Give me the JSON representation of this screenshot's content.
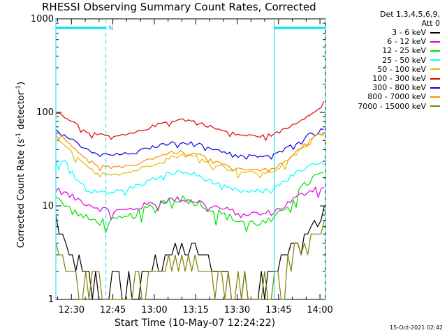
{
  "chart_data": {
    "type": "line",
    "title": "RHESSI Observing Summary Count Rates, Corrected",
    "xlabel": "Start Time (10-May-07 12:24:22)",
    "ylabel_main": "Corrected Count Rate (s",
    "ylabel_exp1": "-1",
    "ylabel_mid": " detector",
    "ylabel_exp2": "-1",
    "ylabel_end": ")",
    "yscale": "log",
    "ylim": [
      1,
      1000
    ],
    "xlim_minutes": [
      24.37,
      122
    ],
    "x_ticks": [
      {
        "label": "12:30",
        "min": 30
      },
      {
        "label": "12:45",
        "min": 45
      },
      {
        "label": "13:00",
        "min": 60
      },
      {
        "label": "13:15",
        "min": 75
      },
      {
        "label": "13:30",
        "min": 90
      },
      {
        "label": "13:45",
        "min": 105
      },
      {
        "label": "14:00",
        "min": 120
      }
    ],
    "y_ticks": [
      {
        "label": "1",
        "value": 1
      },
      {
        "label": "10",
        "value": 10
      },
      {
        "label": "100",
        "value": 100
      },
      {
        "label": "1000",
        "value": 1000
      }
    ],
    "legend_header": [
      "Det 1,3,4,5,6,9,",
      "Att 0"
    ],
    "night_intervals": [
      {
        "start": 24.37,
        "end": 42.5,
        "label": "N"
      },
      {
        "start": 103.5,
        "end": 122,
        "label": ""
      }
    ],
    "series": [
      {
        "name": "3 - 6 keV",
        "color": "#000000",
        "x": [
          24.4,
          26,
          28,
          30,
          33,
          36,
          40,
          45,
          50,
          55,
          60,
          65,
          70,
          75,
          80,
          85,
          90,
          95,
          100,
          103,
          105,
          110,
          115,
          118,
          120,
          121.8
        ],
        "y": [
          7,
          4.5,
          3.2,
          2.5,
          2,
          1.7,
          1.4,
          1.2,
          1.3,
          1.6,
          2.4,
          3,
          3.1,
          2.9,
          2.3,
          1.8,
          1.4,
          1.3,
          1.6,
          1.9,
          2.4,
          3.2,
          4.5,
          6,
          7,
          7.5
        ]
      },
      {
        "name": "6 - 12 keV",
        "color": "#e000e0",
        "x": [
          24.4,
          27,
          30,
          33,
          36,
          40,
          45,
          50,
          55,
          60,
          65,
          70,
          75,
          80,
          85,
          90,
          95,
          100,
          103,
          106,
          110,
          115,
          118,
          121.8
        ],
        "y": [
          15,
          14,
          12.5,
          11.5,
          10.5,
          9.5,
          8.8,
          9,
          9.8,
          10.8,
          11.6,
          11.8,
          11.3,
          10.2,
          9.2,
          8.5,
          8.2,
          8.2,
          8.6,
          9.5,
          11.5,
          14,
          15.5,
          16
        ]
      },
      {
        "name": "12 - 25 keV",
        "color": "#00e000",
        "x": [
          24.4,
          27,
          30,
          33,
          36,
          40,
          45,
          50,
          55,
          60,
          65,
          70,
          75,
          80,
          85,
          90,
          95,
          100,
          103,
          106,
          110,
          115,
          118,
          121.8
        ],
        "y": [
          12,
          10.5,
          9,
          8,
          7.2,
          6.8,
          6.8,
          7.4,
          8.6,
          10.2,
          11.6,
          12,
          11,
          9.3,
          8,
          7,
          6.6,
          6.6,
          7,
          8.5,
          12,
          17,
          20.5,
          22
        ]
      },
      {
        "name": "25 - 50 keV",
        "color": "#00ffff",
        "x": [
          24.4,
          26,
          28,
          30,
          33,
          36,
          40,
          45,
          50,
          55,
          60,
          65,
          70,
          75,
          80,
          85,
          90,
          95,
          100,
          103,
          106,
          110,
          115,
          118,
          121.8
        ],
        "y": [
          30,
          27,
          31,
          23,
          18,
          16,
          14.5,
          14,
          15,
          17,
          19.5,
          22,
          23,
          21.5,
          18.5,
          16,
          14.5,
          14,
          14.5,
          15.5,
          18,
          21.5,
          25,
          27.5,
          28.5
        ]
      },
      {
        "name": "50 - 100 keV",
        "color": "#e0c000",
        "x": [
          24.4,
          27,
          30,
          33,
          36,
          40,
          45,
          50,
          55,
          60,
          65,
          70,
          75,
          80,
          85,
          90,
          95,
          100,
          103,
          106,
          110,
          115,
          118,
          121.8
        ],
        "y": [
          52,
          45,
          37,
          30,
          25.5,
          23,
          22,
          22.5,
          25,
          28.5,
          32.5,
          35,
          33.5,
          29.5,
          26,
          23.5,
          22.5,
          22.5,
          23.5,
          26.5,
          33,
          45,
          55,
          60
        ]
      },
      {
        "name": "100 - 300 keV",
        "color": "#e00000",
        "x": [
          24.4,
          27,
          30,
          33,
          36,
          40,
          45,
          50,
          55,
          60,
          65,
          70,
          75,
          80,
          85,
          90,
          95,
          100,
          103,
          106,
          110,
          115,
          118,
          120.5,
          121.8
        ],
        "y": [
          100,
          93,
          82,
          70,
          62,
          57,
          55,
          57,
          63,
          72,
          80,
          84,
          80,
          71,
          63,
          58,
          56,
          56,
          58,
          63,
          73,
          90,
          105,
          110,
          140
        ]
      },
      {
        "name": "300 - 800 keV",
        "color": "#0000e0",
        "x": [
          24.4,
          27,
          30,
          33,
          36,
          40,
          45,
          50,
          55,
          60,
          65,
          70,
          75,
          80,
          85,
          90,
          95,
          100,
          103,
          106,
          110,
          115,
          118,
          121.8
        ],
        "y": [
          65,
          59,
          51,
          44,
          39,
          36,
          35,
          36,
          39,
          43,
          46.5,
          48,
          46.5,
          42,
          38,
          35,
          34,
          34,
          35,
          38,
          45,
          55,
          63,
          68
        ]
      },
      {
        "name": "800 - 7000 keV",
        "color": "#ff8c00",
        "x": [
          24.4,
          27,
          30,
          33,
          36,
          40,
          45,
          50,
          55,
          60,
          65,
          70,
          75,
          80,
          85,
          90,
          95,
          100,
          103,
          106,
          110,
          115,
          118,
          121.8
        ],
        "y": [
          60,
          53,
          45,
          37,
          31,
          27,
          25.5,
          26,
          29,
          33,
          36.5,
          38,
          36,
          31.5,
          27.5,
          25,
          24,
          24,
          25,
          28,
          35,
          46,
          55,
          59
        ]
      },
      {
        "name": "7000 - 15000 keV",
        "color": "#808000",
        "x": [
          24.4,
          26,
          28,
          30,
          33,
          36,
          40,
          45,
          50,
          55,
          60,
          65,
          70,
          75,
          80,
          85,
          90,
          95,
          100,
          103,
          105,
          110,
          115,
          118,
          120,
          121.8
        ],
        "y": [
          3.5,
          2.5,
          2,
          1.6,
          1.4,
          1.3,
          1.2,
          1.1,
          1.2,
          1.4,
          1.8,
          2.2,
          2.4,
          2.2,
          1.8,
          1.5,
          1.3,
          1.2,
          1.3,
          1.5,
          1.8,
          2.4,
          3.5,
          4.5,
          5.5,
          6
        ]
      }
    ]
  },
  "footer": {
    "timestamp": "15-Oct-2021 02:42"
  }
}
